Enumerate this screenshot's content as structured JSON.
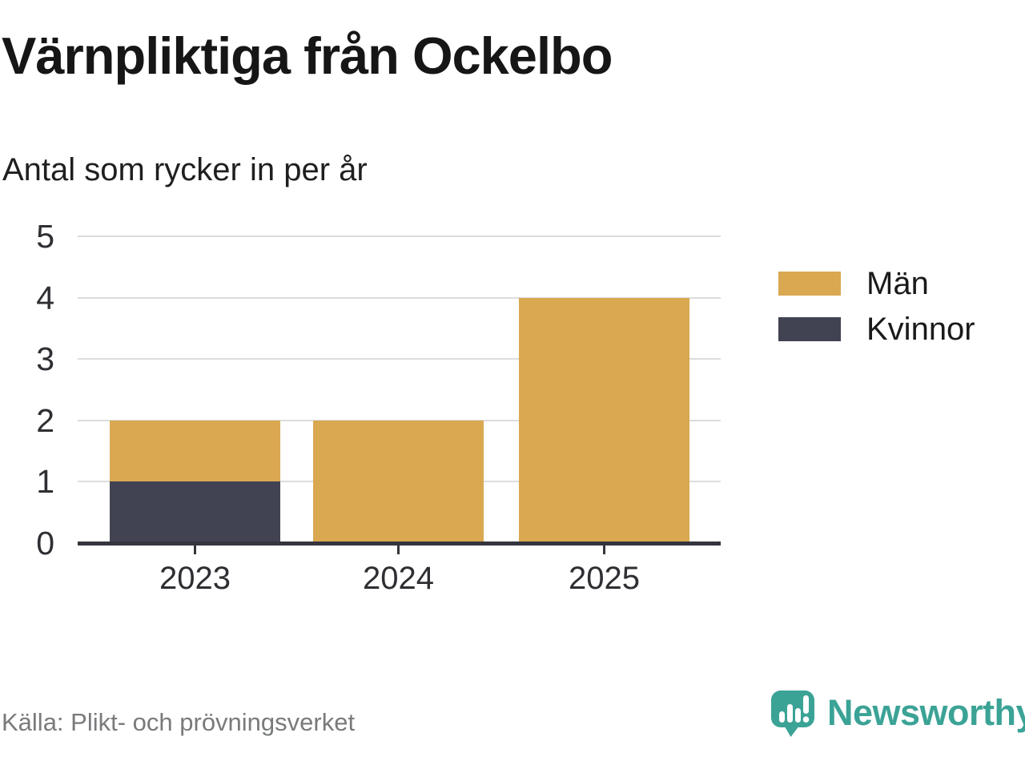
{
  "header": {
    "title": "Värnpliktiga från Ockelbo",
    "subtitle": "Antal som rycker in per år"
  },
  "chart_data": {
    "type": "bar",
    "stacked": true,
    "title": "Värnpliktiga från Ockelbo",
    "subtitle": "Antal som rycker in per år",
    "categories": [
      "2023",
      "2024",
      "2025"
    ],
    "series": [
      {
        "name": "Män",
        "color": "#d9a851",
        "values": [
          1,
          2,
          4
        ]
      },
      {
        "name": "Kvinnor",
        "color": "#414252",
        "values": [
          1,
          0,
          0
        ]
      }
    ],
    "totals": [
      2,
      2,
      4
    ],
    "xlabel": "",
    "ylabel": "",
    "ylim": [
      0,
      5
    ],
    "yticks": [
      0,
      1,
      2,
      3,
      4,
      5
    ],
    "grid": true,
    "legend_position": "right"
  },
  "footer": {
    "source": "Källa: Plikt- och prövningsverket",
    "brand": "Newsworthy"
  },
  "icons": {
    "brand_icon": "speech-bubble-bar-chart-icon"
  },
  "colors": {
    "men": "#d9a851",
    "women": "#414252",
    "grid": "#dcdcdc",
    "axis": "#35353d",
    "brand_teal": "#3ba396",
    "source_gray": "#797a7c",
    "background": "#ffffff"
  }
}
